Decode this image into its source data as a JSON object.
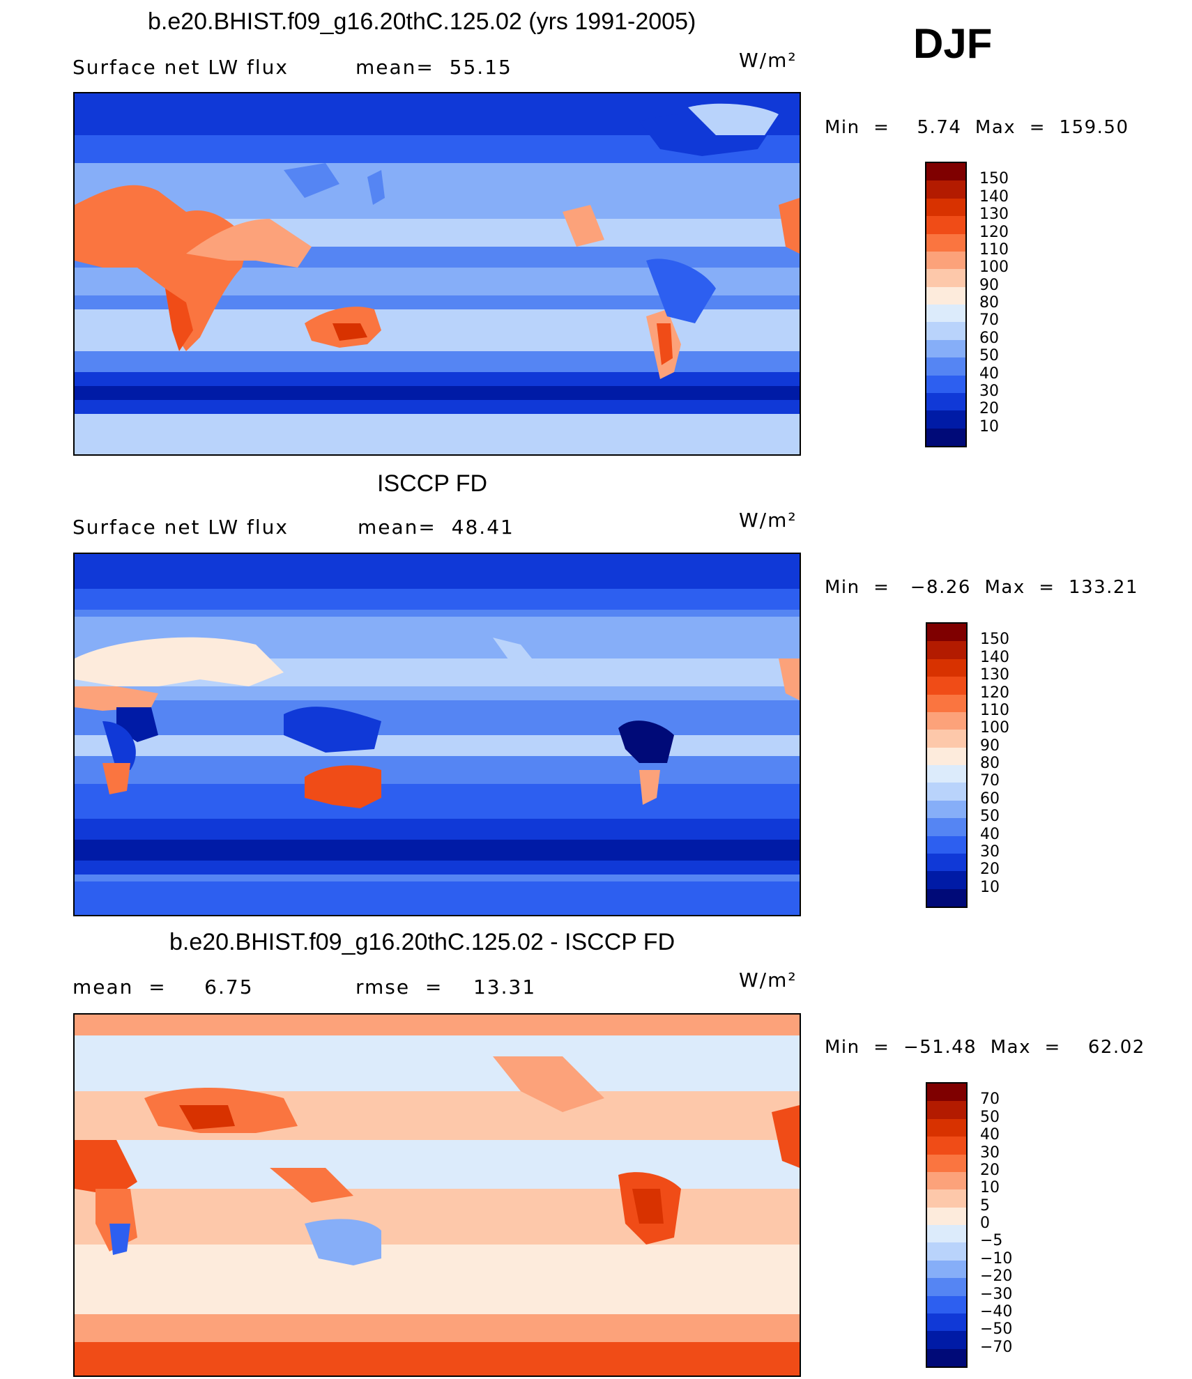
{
  "season": "DJF",
  "units_label": "W/m²",
  "panels": [
    {
      "title": "b.e20.BHIST.f09_g16.20thC.125.02 (yrs 1991-2005)",
      "left_label": "Surface net LW flux",
      "center_label": "mean=  55.15",
      "min_max": "Min  =    5.74  Max  =  159.50",
      "colorbar": {
        "labels": [
          "150",
          "140",
          "130",
          "120",
          "110",
          "100",
          "90",
          "80",
          "70",
          "60",
          "50",
          "40",
          "30",
          "20",
          "10"
        ],
        "colors": [
          "#7f0000",
          "#b31b00",
          "#d83200",
          "#f04c17",
          "#fa7540",
          "#fca27a",
          "#fdc8aa",
          "#fdebdc",
          "#dcebfb",
          "#b9d3fb",
          "#86aef8",
          "#5585f3",
          "#2d5ff0",
          "#1039d7",
          "#001ba6",
          "#000a78"
        ]
      },
      "chart_data": {
        "type": "heatmap",
        "title": "b.e20.BHIST.f09_g16.20thC.125.02 (yrs 1991-2005)",
        "variable": "Surface net LW flux",
        "mean": 55.15,
        "min": 5.74,
        "max": 159.5,
        "units": "W/m²",
        "contour_levels": [
          10,
          20,
          30,
          40,
          50,
          60,
          70,
          80,
          90,
          100,
          110,
          120,
          130,
          140,
          150
        ]
      }
    },
    {
      "title": "ISCCP FD",
      "left_label": "Surface net LW flux",
      "center_label": "mean=  48.41",
      "min_max": "Min  =   −8.26  Max  =  133.21",
      "colorbar": {
        "labels": [
          "150",
          "140",
          "130",
          "120",
          "110",
          "100",
          "90",
          "80",
          "70",
          "60",
          "50",
          "40",
          "30",
          "20",
          "10"
        ],
        "colors": [
          "#7f0000",
          "#b31b00",
          "#d83200",
          "#f04c17",
          "#fa7540",
          "#fca27a",
          "#fdc8aa",
          "#fdebdc",
          "#dcebfb",
          "#b9d3fb",
          "#86aef8",
          "#5585f3",
          "#2d5ff0",
          "#1039d7",
          "#001ba6",
          "#000a78"
        ]
      },
      "chart_data": {
        "type": "heatmap",
        "title": "ISCCP FD",
        "variable": "Surface net LW flux",
        "mean": 48.41,
        "min": -8.26,
        "max": 133.21,
        "units": "W/m²",
        "contour_levels": [
          10,
          20,
          30,
          40,
          50,
          60,
          70,
          80,
          90,
          100,
          110,
          120,
          130,
          140,
          150
        ]
      }
    },
    {
      "title": "b.e20.BHIST.f09_g16.20thC.125.02 - ISCCP FD",
      "left_label": "mean  =     6.75",
      "center_label": "rmse  =    13.31",
      "min_max": "Min  =  −51.48  Max  =    62.02",
      "colorbar": {
        "labels": [
          "70",
          "50",
          "40",
          "30",
          "20",
          "10",
          "5",
          "0",
          "−5",
          "−10",
          "−20",
          "−30",
          "−40",
          "−50",
          "−70"
        ],
        "colors": [
          "#7f0000",
          "#b31b00",
          "#d83200",
          "#f04c17",
          "#fa7540",
          "#fca27a",
          "#fdc8aa",
          "#fdebdc",
          "#dcebfb",
          "#b9d3fb",
          "#86aef8",
          "#5585f3",
          "#2d5ff0",
          "#1039d7",
          "#001ba6",
          "#000a78"
        ]
      },
      "chart_data": {
        "type": "heatmap",
        "title": "b.e20.BHIST.f09_g16.20thC.125.02 - ISCCP FD",
        "mean": 6.75,
        "rmse": 13.31,
        "min": -51.48,
        "max": 62.02,
        "units": "W/m²",
        "contour_levels": [
          -70,
          -50,
          -40,
          -30,
          -20,
          -10,
          -5,
          0,
          5,
          10,
          20,
          30,
          40,
          50,
          70
        ]
      }
    }
  ]
}
